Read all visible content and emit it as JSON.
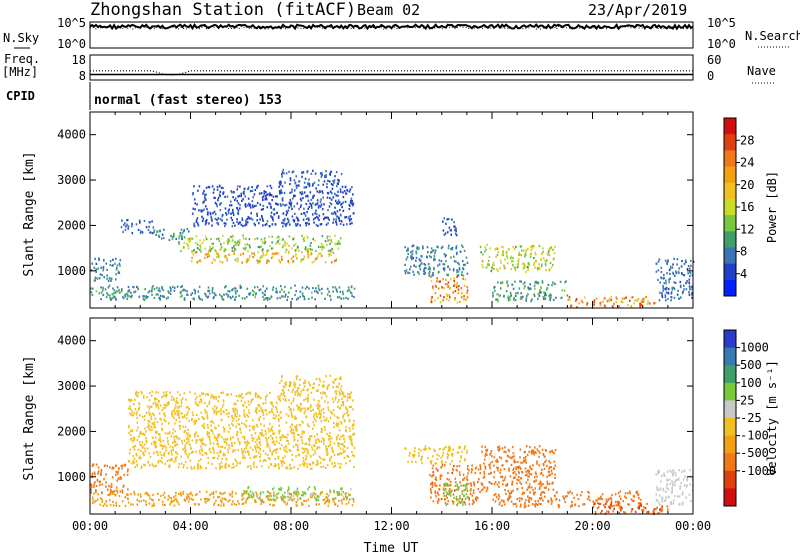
{
  "header": {
    "station": "Zhongshan Station (fitACF)",
    "beam": "Beam 02",
    "date": "23/Apr/2019"
  },
  "chart_data": [
    {
      "id": "noise",
      "type": "line",
      "labels": {
        "left_top": "N.Sky",
        "right_top": "N.Search"
      },
      "y_ticks_left": [
        "10^5",
        "10^0"
      ],
      "y_ticks_right": [
        "10^5",
        "10^0"
      ],
      "series": [
        {
          "values_note": "",
          "level": 0.82
        },
        {
          "values_note": "",
          "level": 0.78
        }
      ]
    },
    {
      "id": "freq",
      "type": "line",
      "labels": {
        "left_top": "Freq.",
        "left_unit": "[MHz]",
        "right": "Nave"
      },
      "y_left": {
        "ticks": [
          "18",
          "8"
        ],
        "range": [
          8,
          18
        ]
      },
      "y_right": {
        "ticks": [
          "60",
          "0"
        ],
        "range": [
          0,
          60
        ]
      },
      "freq_mhz": 10.2,
      "nave": 22
    },
    {
      "id": "cpid",
      "type": "text",
      "label": "CPID",
      "program": "normal (fast stereo) 153"
    },
    {
      "id": "power",
      "type": "heatmap",
      "ylabel": "Slant Range [km]",
      "xlabel": "",
      "y_range": [
        180,
        4500
      ],
      "y_ticks": [
        "1000",
        "2000",
        "3000",
        "4000"
      ],
      "x_range": [
        0,
        24
      ],
      "colorbar": {
        "label": "Power [dB]",
        "ticks": [
          "4",
          "8",
          "12",
          "16",
          "20",
          "24",
          "28"
        ],
        "range": [
          0,
          32
        ],
        "colors": [
          "#0020ff",
          "#2040c8",
          "#3a74b8",
          "#3f9e6c",
          "#78c83c",
          "#c8dc28",
          "#f0c020",
          "#f0a010",
          "#f07818",
          "#e04010",
          "#d01010"
        ]
      },
      "regions": [
        {
          "t": [
            0.0,
            1.2
          ],
          "r": [
            800,
            1300
          ],
          "v": 8
        },
        {
          "t": [
            1.2,
            2.5
          ],
          "r": [
            1850,
            2150
          ],
          "v": 6
        },
        {
          "t": [
            2.5,
            4.0
          ],
          "r": [
            1700,
            1950
          ],
          "v": 8
        },
        {
          "t": [
            3.5,
            10.0
          ],
          "r": [
            1450,
            1800
          ],
          "v": 14
        },
        {
          "t": [
            4.0,
            9.8
          ],
          "r": [
            1200,
            1450
          ],
          "v": 20
        },
        {
          "t": [
            4.0,
            10.5
          ],
          "r": [
            2000,
            2900
          ],
          "v": 5
        },
        {
          "t": [
            7.5,
            10.0
          ],
          "r": [
            2900,
            3250
          ],
          "v": 6
        },
        {
          "t": [
            0.0,
            10.5
          ],
          "r": [
            380,
            700
          ],
          "v": 9
        },
        {
          "t": [
            12.5,
            15.0
          ],
          "r": [
            900,
            1600
          ],
          "v": 8
        },
        {
          "t": [
            13.5,
            15.0
          ],
          "r": [
            300,
            900
          ],
          "v": 22
        },
        {
          "t": [
            14.0,
            14.6
          ],
          "r": [
            1800,
            2200
          ],
          "v": 6
        },
        {
          "t": [
            15.5,
            18.5
          ],
          "r": [
            1000,
            1600
          ],
          "v": 16
        },
        {
          "t": [
            16.0,
            19.0
          ],
          "r": [
            350,
            800
          ],
          "v": 10
        },
        {
          "t": [
            19.0,
            22.5
          ],
          "r": [
            200,
            450
          ],
          "v": 22
        },
        {
          "t": [
            22.5,
            24.0
          ],
          "r": [
            350,
            1300
          ],
          "v": 7
        }
      ]
    },
    {
      "id": "velocity",
      "type": "heatmap",
      "ylabel": "Slant Range [km]",
      "xlabel": "Time UT",
      "y_range": [
        180,
        4500
      ],
      "y_ticks": [
        "1000",
        "2000",
        "3000",
        "4000"
      ],
      "x_range": [
        0,
        24
      ],
      "x_ticks": [
        "00:00",
        "04:00",
        "08:00",
        "12:00",
        "16:00",
        "20:00",
        "00:00"
      ],
      "colorbar": {
        "label": "Velocity [m s⁻¹]",
        "ticks": [
          "1000",
          "500",
          "100",
          "25",
          "-25",
          "-100",
          "-500",
          "-1000"
        ],
        "colors": [
          "#2a3cc8",
          "#3a78b4",
          "#3f9e6c",
          "#78c83c",
          "#c8c8c8",
          "#f0c020",
          "#f0a010",
          "#f07818",
          "#e04010",
          "#d01010"
        ]
      },
      "regions": [
        {
          "t": [
            0.0,
            1.5
          ],
          "r": [
            600,
            1300
          ],
          "v": -300
        },
        {
          "t": [
            1.5,
            10.5
          ],
          "r": [
            1200,
            2900
          ],
          "v": 0
        },
        {
          "t": [
            7.5,
            10.0
          ],
          "r": [
            2900,
            3250
          ],
          "v": 0
        },
        {
          "t": [
            0.0,
            10.5
          ],
          "r": [
            380,
            700
          ],
          "v": -80
        },
        {
          "t": [
            6.0,
            10.5
          ],
          "r": [
            500,
            800
          ],
          "v": 120
        },
        {
          "t": [
            12.5,
            15.0
          ],
          "r": [
            1300,
            1700
          ],
          "v": 0
        },
        {
          "t": [
            13.5,
            15.5
          ],
          "r": [
            400,
            1300
          ],
          "v": -400
        },
        {
          "t": [
            14.0,
            15.0
          ],
          "r": [
            400,
            900
          ],
          "v": 300
        },
        {
          "t": [
            15.5,
            18.5
          ],
          "r": [
            700,
            1700
          ],
          "v": -350
        },
        {
          "t": [
            16.0,
            22.0
          ],
          "r": [
            350,
            700
          ],
          "v": -300
        },
        {
          "t": [
            20.0,
            23.0
          ],
          "r": [
            200,
            450
          ],
          "v": -500
        },
        {
          "t": [
            22.5,
            24.0
          ],
          "r": [
            400,
            1200
          ],
          "v": 60
        }
      ]
    }
  ]
}
